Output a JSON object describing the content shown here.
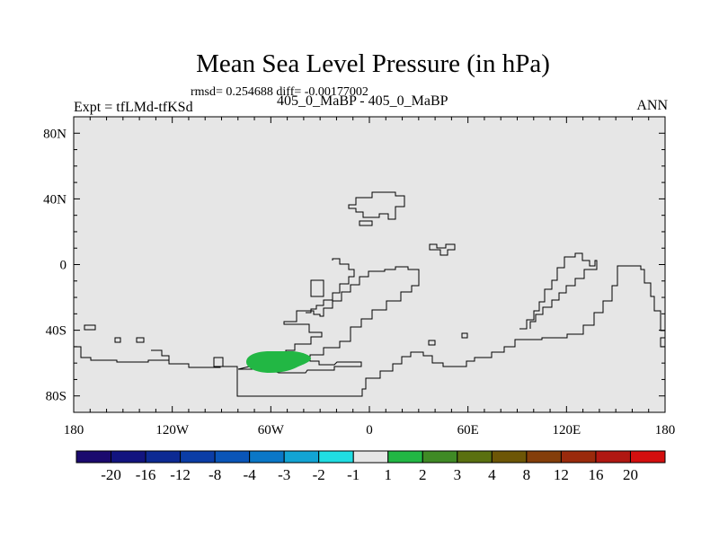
{
  "header": {
    "title": "Mean Sea Level Pressure (in hPa)",
    "stats": "rmsd= 0.254688 diff= -0.00177002",
    "left_label": "Expt = tfLMd-tfKSd",
    "center_label": "405_0_MaBP - 405_0_MaBP",
    "right_label": "ANN"
  },
  "chart_data": {
    "type": "heatmap",
    "title": "Mean Sea Level Pressure (in hPa)",
    "map_projection": "cylindrical equidistant",
    "xlim": [
      -180,
      180
    ],
    "ylim": [
      -90,
      90
    ],
    "x_ticks": [
      {
        "value": -180,
        "label": "180"
      },
      {
        "value": -120,
        "label": "120W"
      },
      {
        "value": -60,
        "label": "60W"
      },
      {
        "value": 0,
        "label": "0"
      },
      {
        "value": 60,
        "label": "60E"
      },
      {
        "value": 120,
        "label": "120E"
      },
      {
        "value": 180,
        "label": "180"
      }
    ],
    "y_ticks": [
      {
        "value": 80,
        "label": "80N"
      },
      {
        "value": 40,
        "label": "40N"
      },
      {
        "value": 0,
        "label": "0"
      },
      {
        "value": -40,
        "label": "40S"
      },
      {
        "value": -80,
        "label": "80S"
      }
    ],
    "background_value_range": "-1 to 1",
    "background_color": "#e6e6e6",
    "anomaly_regions": [
      {
        "name": "south-atlantic-positive",
        "center_lon": -59,
        "center_lat": -59,
        "value_range": "1 to 2",
        "color": "#22b744"
      }
    ],
    "colorbar": {
      "labels": [
        "-20",
        "-16",
        "-12",
        "-8",
        "-4",
        "-3",
        "-2",
        "-1",
        "1",
        "2",
        "3",
        "4",
        "8",
        "12",
        "16",
        "20"
      ],
      "colors": [
        "#1b0a6e",
        "#12147f",
        "#0d2a93",
        "#0b3da6",
        "#0a55b8",
        "#0a77c7",
        "#12a4d4",
        "#20dde2",
        "#e6e6e6",
        "#22b744",
        "#3f8a25",
        "#5a7010",
        "#6d5606",
        "#843e0a",
        "#9a2a0c",
        "#b01812",
        "#d40f0f"
      ]
    }
  }
}
